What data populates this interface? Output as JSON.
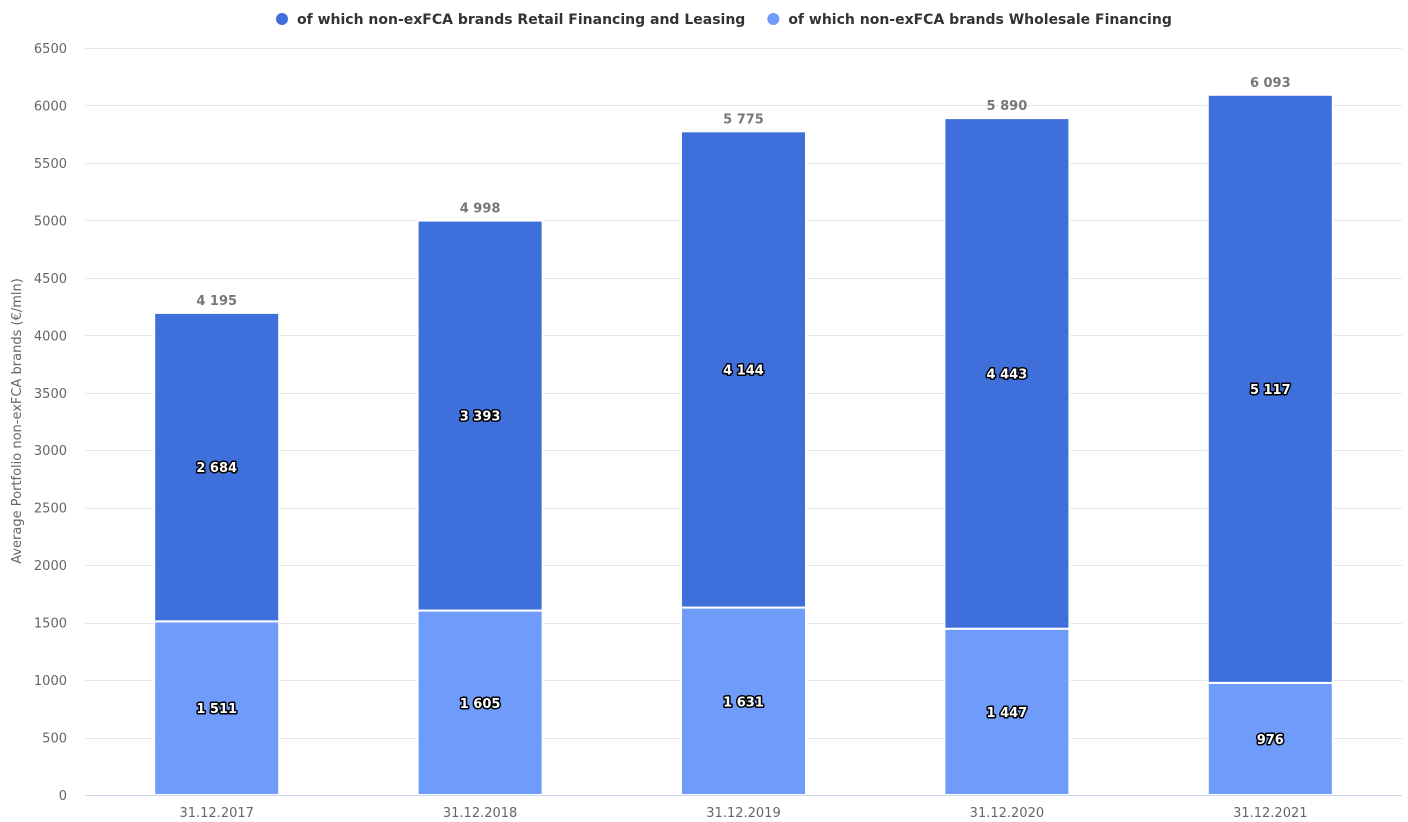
{
  "chart_data": {
    "type": "bar",
    "stacked": true,
    "categories": [
      "31.12.2017",
      "31.12.2018",
      "31.12.2019",
      "31.12.2020",
      "31.12.2021"
    ],
    "series": [
      {
        "name": "of which non-exFCA brands Wholesale Financing",
        "color": "#6f9bfb",
        "values": [
          1511,
          1605,
          1631,
          1447,
          976
        ],
        "labels": [
          "1 511",
          "1 605",
          "1 631",
          "1 447",
          "976"
        ]
      },
      {
        "name": "of which non-exFCA brands Retail Financing and Leasing",
        "color": "#3f6fda",
        "values": [
          2684,
          3393,
          4144,
          4443,
          5117
        ],
        "labels": [
          "2 684",
          "3 393",
          "4 144",
          "4 443",
          "5 117"
        ]
      }
    ],
    "totals": [
      4195,
      4998,
      5775,
      5890,
      6093
    ],
    "total_labels": [
      "4 195",
      "4 998",
      "5 775",
      "5 890",
      "6 093"
    ],
    "legend_order": [
      1,
      0
    ],
    "ylabel": "Average Portfolio non-exFCA brands (€/mln)",
    "xlabel": "",
    "ylim": [
      0,
      6500
    ],
    "yticks": [
      "0",
      "500",
      "1000",
      "1500",
      "2000",
      "2500",
      "3000",
      "3500",
      "4000",
      "4500",
      "5000",
      "5500",
      "6000",
      "6500"
    ],
    "grid": true,
    "legend_position": "top-center"
  }
}
